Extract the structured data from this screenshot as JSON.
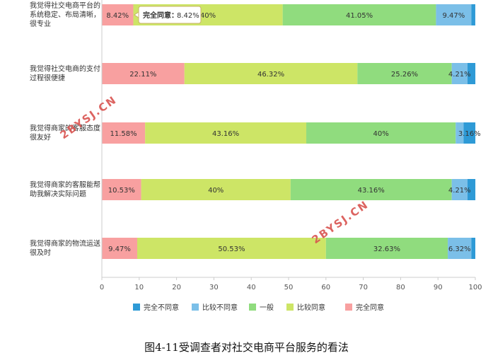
{
  "chart_data": {
    "type": "bar",
    "orientation": "horizontal",
    "stacked": true,
    "xlim": [
      0,
      100
    ],
    "xticks": [
      0,
      10,
      20,
      30,
      40,
      50,
      60,
      70,
      80,
      90,
      100
    ],
    "grid": false,
    "legend_position": "bottom",
    "categories": [
      "我觉得社交电商平台的系统稳定、布局清晰，很专业",
      "我觉得社交电商的支付过程很便捷",
      "我觉得商家的客服态度很友好",
      "我觉得商家的客服能帮助我解决实际问题",
      "我觉得商家的物流运送很及时"
    ],
    "series": [
      {
        "name": "完全同意",
        "color": "#f8a0a0",
        "values": [
          8.42,
          22.11,
          11.58,
          10.53,
          9.47
        ]
      },
      {
        "name": "比较同意",
        "color": "#cde566",
        "values": [
          40,
          46.32,
          43.16,
          40,
          50.53
        ]
      },
      {
        "name": "一般",
        "color": "#90dc7e",
        "values": [
          41.05,
          25.26,
          40,
          43.16,
          32.63
        ]
      },
      {
        "name": "比较不同意",
        "color": "#7bbfe8",
        "values": [
          9.47,
          4.21,
          2.11,
          4.21,
          6.32
        ]
      },
      {
        "name": "完全不同意",
        "color": "#2e9ad6",
        "values": [
          1.05,
          2.11,
          3.16,
          2.11,
          1.05
        ]
      }
    ],
    "data_labels": [
      [
        "8.42%",
        "40%",
        "41.05%",
        "9.47%",
        ""
      ],
      [
        "22.11%",
        "46.32%",
        "25.26%",
        "4.21%",
        ""
      ],
      [
        "11.58%",
        "43.16%",
        "40%",
        "",
        "3.16%"
      ],
      [
        "10.53%",
        "40%",
        "43.16%",
        "4.21%",
        ""
      ],
      [
        "9.47%",
        "50.53%",
        "32.63%",
        "6.32%",
        ""
      ]
    ],
    "legend_order": [
      "完全不同意",
      "比较不同意",
      "一般",
      "比较同意",
      "完全同意"
    ],
    "tooltip": {
      "category_index": 0,
      "series": "完全同意",
      "label": "完全同意：",
      "value": "8.42%"
    }
  },
  "watermark_text": "2BYSJ.CN",
  "caption": "图4-11受调查者对社交电商平台服务的看法"
}
